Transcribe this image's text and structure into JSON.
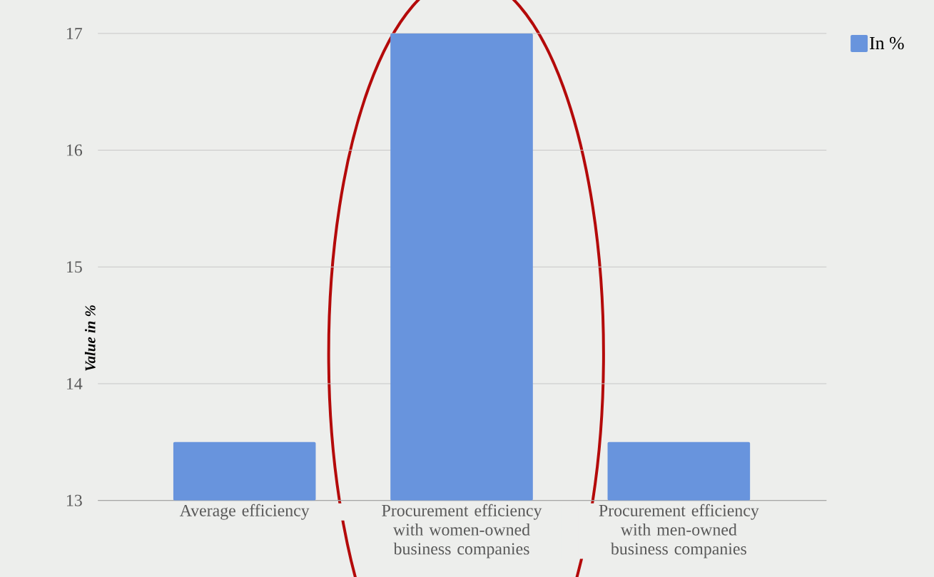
{
  "chart_data": {
    "type": "bar",
    "ylabel": "Value in %",
    "categories": [
      "Average efficiency",
      "Procurement efficiency with women-owned business companies",
      "Procurement efficiency with men-owned business companies"
    ],
    "series": [
      {
        "name": "In %",
        "color": "#6894dd",
        "values": [
          13.5,
          17,
          13.5
        ]
      }
    ],
    "ylim": [
      13,
      17
    ],
    "yticks": [
      13,
      14,
      15,
      16,
      17
    ],
    "grid": "y",
    "legend": "top right"
  }
}
